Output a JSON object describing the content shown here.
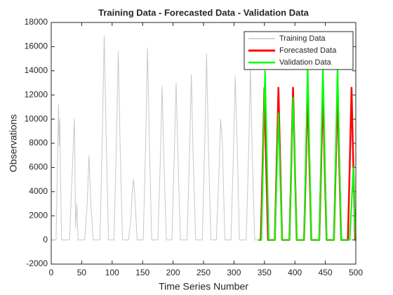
{
  "chart_data": {
    "type": "line",
    "title": "Training Data - Forecasted Data - Validation Data",
    "xlabel": "Time Series Number",
    "ylabel": "Observations",
    "xlim": [
      0,
      500
    ],
    "xticks": [
      0,
      50,
      100,
      150,
      200,
      250,
      300,
      350,
      400,
      450,
      500
    ],
    "ylim": [
      -2000,
      18000
    ],
    "yticks": [
      -2000,
      0,
      2000,
      4000,
      6000,
      8000,
      10000,
      12000,
      14000,
      16000,
      18000
    ],
    "legend": "upper right",
    "series": [
      {
        "name": "Training Data",
        "color": "#c8c8c8",
        "width": 1,
        "x": [
          0,
          8,
          10,
          12,
          13,
          14,
          15,
          17,
          20,
          30,
          34,
          38,
          40,
          42,
          44,
          48,
          55,
          59,
          62,
          65,
          69,
          80,
          84,
          87,
          90,
          94,
          103,
          107,
          110,
          113,
          117,
          127,
          131,
          133,
          135,
          137,
          141,
          151,
          155,
          158,
          161,
          165,
          175,
          179,
          182,
          185,
          189,
          198,
          202,
          205,
          208,
          212,
          223,
          227,
          230,
          233,
          237,
          248,
          252,
          255,
          258,
          262,
          271,
          275,
          278,
          281,
          285,
          295,
          299,
          302,
          305,
          309,
          320,
          324,
          327,
          330,
          334,
          340
        ],
        "values": [
          0,
          0,
          6000,
          11200,
          7800,
          10000,
          6000,
          0,
          0,
          0,
          5000,
          10000,
          1000,
          3000,
          0,
          0,
          0,
          3000,
          7000,
          3000,
          0,
          0,
          9000,
          16900,
          9000,
          0,
          0,
          8000,
          15600,
          8000,
          0,
          0,
          2000,
          4000,
          5000,
          3800,
          0,
          0,
          8000,
          15900,
          8500,
          0,
          0,
          6500,
          12700,
          6500,
          0,
          0,
          7000,
          13000,
          7000,
          0,
          0,
          7000,
          13700,
          7000,
          0,
          0,
          8000,
          15400,
          8000,
          0,
          0,
          5000,
          10000,
          8000,
          0,
          0,
          7000,
          13500,
          8500,
          0,
          0,
          7000,
          14300,
          7000,
          0,
          0
        ]
      },
      {
        "name": "Forecasted Data",
        "color": "#ff0000",
        "width": 2.5,
        "x": [
          340,
          344,
          347,
          350,
          353,
          356,
          367,
          370,
          373,
          376,
          379,
          391,
          394,
          397,
          400,
          403,
          415,
          418,
          421,
          424,
          427,
          440,
          443,
          446,
          449,
          452,
          464,
          467,
          470,
          473,
          476,
          487,
          490,
          493,
          496,
          499,
          500
        ],
        "values": [
          0,
          0,
          6000,
          12600,
          6000,
          0,
          0,
          6000,
          12600,
          6000,
          0,
          0,
          6000,
          12600,
          6000,
          0,
          0,
          6000,
          12600,
          6000,
          0,
          0,
          6000,
          12600,
          6000,
          0,
          0,
          6000,
          12600,
          6000,
          0,
          0,
          6000,
          12600,
          6000,
          0,
          0
        ]
      },
      {
        "name": "Validation Data",
        "color": "#00ff00",
        "width": 2,
        "x": [
          340,
          345,
          348,
          351,
          354,
          357,
          367,
          370,
          373,
          376,
          379,
          391,
          394,
          397,
          400,
          403,
          415,
          418,
          421,
          424,
          427,
          440,
          443,
          446,
          449,
          452,
          464,
          467,
          470,
          473,
          476,
          490,
          493,
          496,
          498,
          500
        ],
        "values": [
          0,
          0,
          7000,
          14000,
          7000,
          0,
          0,
          5000,
          10500,
          5000,
          0,
          0,
          6000,
          11800,
          6000,
          0,
          0,
          7000,
          14500,
          7000,
          0,
          0,
          7000,
          14500,
          7000,
          0,
          0,
          7000,
          14500,
          7000,
          0,
          0,
          3000,
          6000,
          2000,
          0
        ]
      }
    ]
  }
}
